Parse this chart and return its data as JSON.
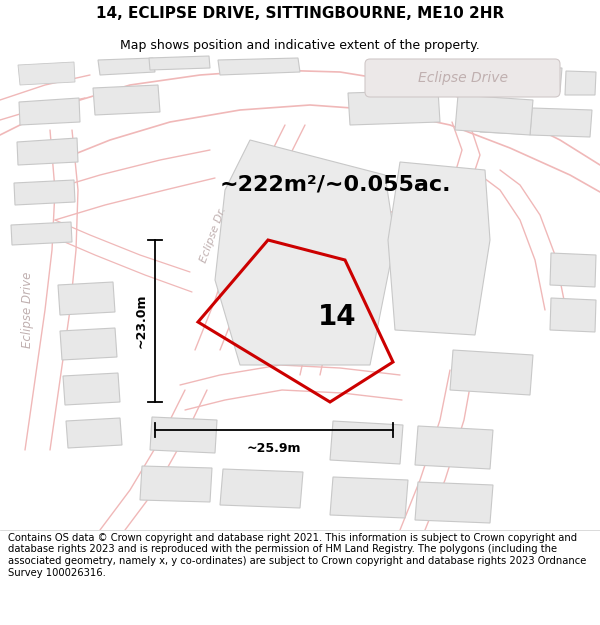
{
  "title": "14, ECLIPSE DRIVE, SITTINGBOURNE, ME10 2HR",
  "subtitle": "Map shows position and indicative extent of the property.",
  "area_text": "~222m²/~0.055ac.",
  "width_label": "~25.9m",
  "height_label": "~23.0m",
  "property_number": "14",
  "footer": "Contains OS data © Crown copyright and database right 2021. This information is subject to Crown copyright and database rights 2023 and is reproduced with the permission of HM Land Registry. The polygons (including the associated geometry, namely x, y co-ordinates) are subject to Crown copyright and database rights 2023 Ordnance Survey 100026316.",
  "bg_color": "#ffffff",
  "road_line_color": "#f0b8b8",
  "building_face_color": "#e8e8e8",
  "building_edge_color": "#c8c8c8",
  "road_label_color": "#c0b0b0",
  "road_badge_color": "#e0d8d8",
  "property_edge_color": "#cc0000",
  "dim_color": "#000000",
  "title_fontsize": 11,
  "subtitle_fontsize": 9,
  "area_fontsize": 16,
  "number_fontsize": 20,
  "dim_fontsize": 9,
  "footer_fontsize": 7.2,
  "road_label_fontsize": 10
}
